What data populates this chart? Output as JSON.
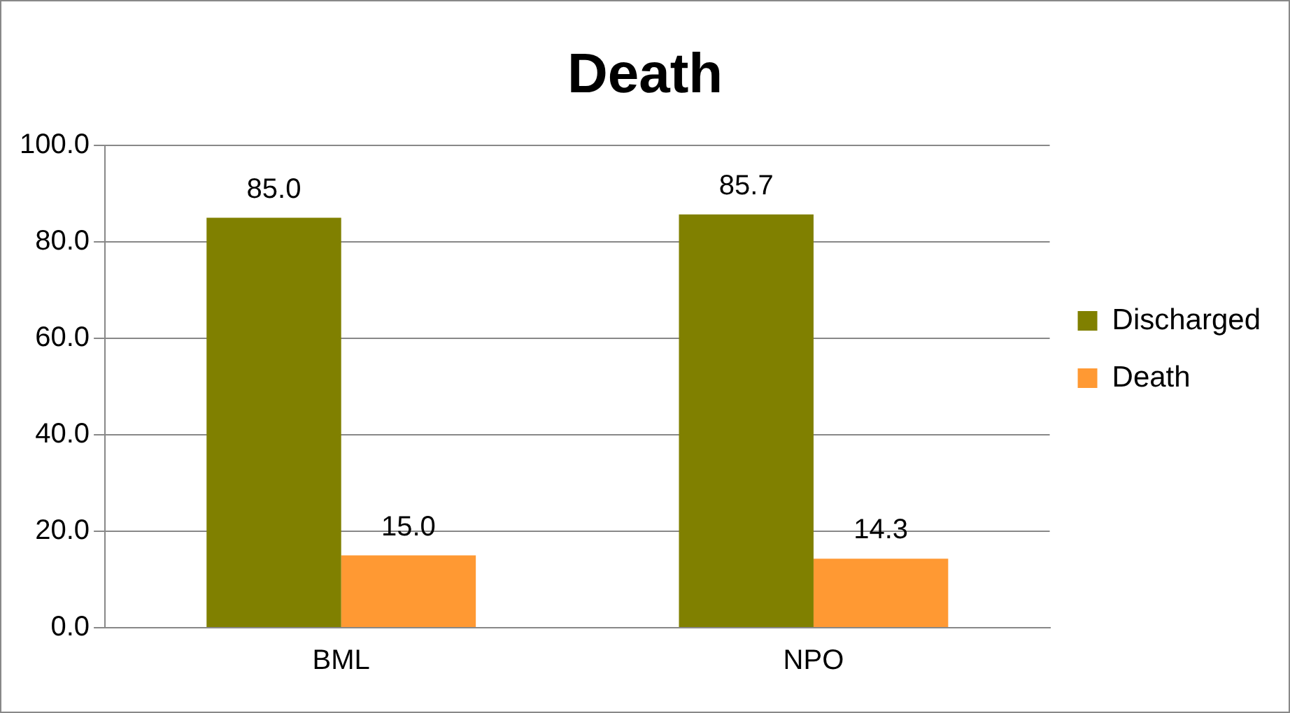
{
  "chart_data": {
    "type": "bar",
    "title": "Death",
    "categories": [
      "BML",
      "NPO"
    ],
    "series": [
      {
        "name": "Discharged",
        "color": "#808000",
        "values": [
          85.0,
          85.7
        ],
        "value_labels": [
          "85.0",
          "85.7"
        ]
      },
      {
        "name": "Death",
        "color": "#ff9933",
        "values": [
          15.0,
          14.3
        ],
        "value_labels": [
          "15.0",
          "14.3"
        ]
      }
    ],
    "ylim": [
      0,
      100
    ],
    "yticks": [
      {
        "value": 0,
        "label": "0.0"
      },
      {
        "value": 20,
        "label": "20.0"
      },
      {
        "value": 40,
        "label": "40.0"
      },
      {
        "value": 60,
        "label": "60.0"
      },
      {
        "value": 80,
        "label": "80.0"
      },
      {
        "value": 100,
        "label": "100.0"
      }
    ],
    "grid": "y",
    "legend": "right"
  }
}
